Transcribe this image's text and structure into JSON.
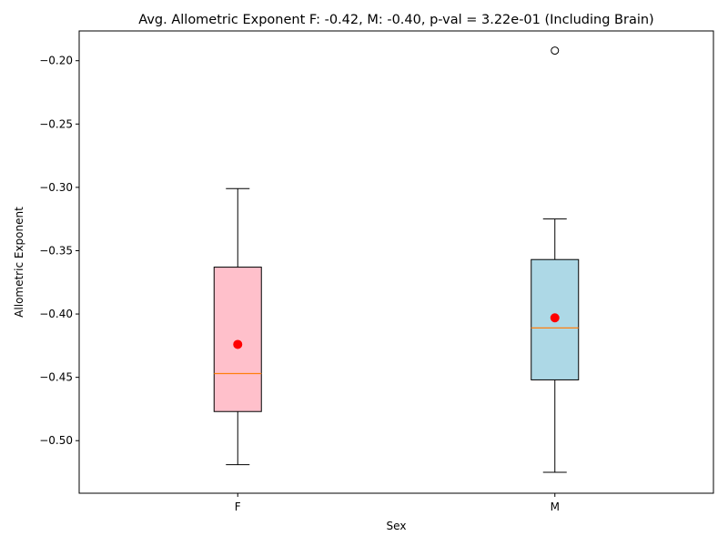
{
  "chart_data": {
    "type": "box",
    "title": "Avg. Allometric Exponent F: -0.42, M: -0.40, p-val = 3.22e-01 (Including Brain)",
    "xlabel": "Sex",
    "ylabel": "Allometric Exponent",
    "categories": [
      "F",
      "M"
    ],
    "ylim": [
      -0.5415,
      -0.1765
    ],
    "yticks": [
      -0.5,
      -0.45,
      -0.4,
      -0.35,
      -0.3,
      -0.25,
      -0.2
    ],
    "ytick_labels": [
      "−0.50",
      "−0.45",
      "−0.40",
      "−0.35",
      "−0.30",
      "−0.25",
      "−0.20"
    ],
    "grid": false,
    "boxes": [
      {
        "category": "F",
        "fill": "#ffc0cb",
        "whisker_low": -0.519,
        "q1": -0.477,
        "median": -0.447,
        "q3": -0.363,
        "whisker_high": -0.301,
        "mean": -0.424,
        "outliers": []
      },
      {
        "category": "M",
        "fill": "#add8e6",
        "whisker_low": -0.525,
        "q1": -0.452,
        "median": -0.411,
        "q3": -0.357,
        "whisker_high": -0.325,
        "mean": -0.403,
        "outliers": [
          -0.192
        ]
      }
    ],
    "colors": {
      "median_line": "#ff7f0e",
      "mean_marker": "#ff0000",
      "box_edge": "#000000"
    }
  }
}
